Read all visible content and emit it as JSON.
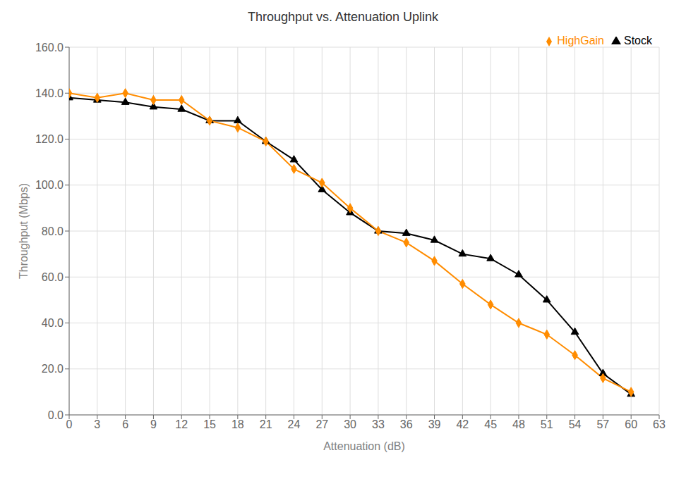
{
  "chart_data": {
    "type": "line",
    "title": "Throughput vs. Attenuation Uplink",
    "xlabel": "Attenuation (dB)",
    "ylabel": "Throughput (Mbps)",
    "xlim": [
      0,
      63
    ],
    "ylim": [
      0,
      160
    ],
    "xticks": [
      0,
      3,
      6,
      9,
      12,
      15,
      18,
      21,
      24,
      27,
      30,
      33,
      36,
      39,
      42,
      45,
      48,
      51,
      54,
      57,
      60,
      63
    ],
    "yticks": [
      {
        "value": 0,
        "label": "0.0"
      },
      {
        "value": 20,
        "label": "20.0"
      },
      {
        "value": 40,
        "label": "40.0"
      },
      {
        "value": 60,
        "label": "60.0"
      },
      {
        "value": 80,
        "label": "80.0"
      },
      {
        "value": 100,
        "label": "100.0"
      },
      {
        "value": 120,
        "label": "120.0"
      },
      {
        "value": 140,
        "label": "140.0"
      },
      {
        "value": 160,
        "label": "160.0"
      }
    ],
    "grid": true,
    "legend": "upper right",
    "x": [
      0,
      3,
      6,
      9,
      12,
      15,
      18,
      21,
      24,
      27,
      30,
      33,
      36,
      39,
      42,
      45,
      48,
      51,
      54,
      57,
      60
    ],
    "series": [
      {
        "name": "Stock",
        "color": "#000000",
        "marker": "triangle",
        "line_style": "solid",
        "values": [
          138,
          137,
          136,
          134,
          133,
          128,
          128,
          119,
          111,
          98,
          88,
          80,
          79,
          76,
          70,
          68,
          61,
          50,
          36,
          18,
          9
        ]
      },
      {
        "name": "HighGain",
        "color": "#FF8C00",
        "marker": "diamond",
        "line_style": "solid",
        "values": [
          140,
          138,
          140,
          137,
          137,
          128,
          125,
          119,
          107,
          101,
          90,
          80,
          75,
          67,
          57,
          48,
          40,
          35,
          26,
          16,
          10
        ]
      }
    ]
  }
}
